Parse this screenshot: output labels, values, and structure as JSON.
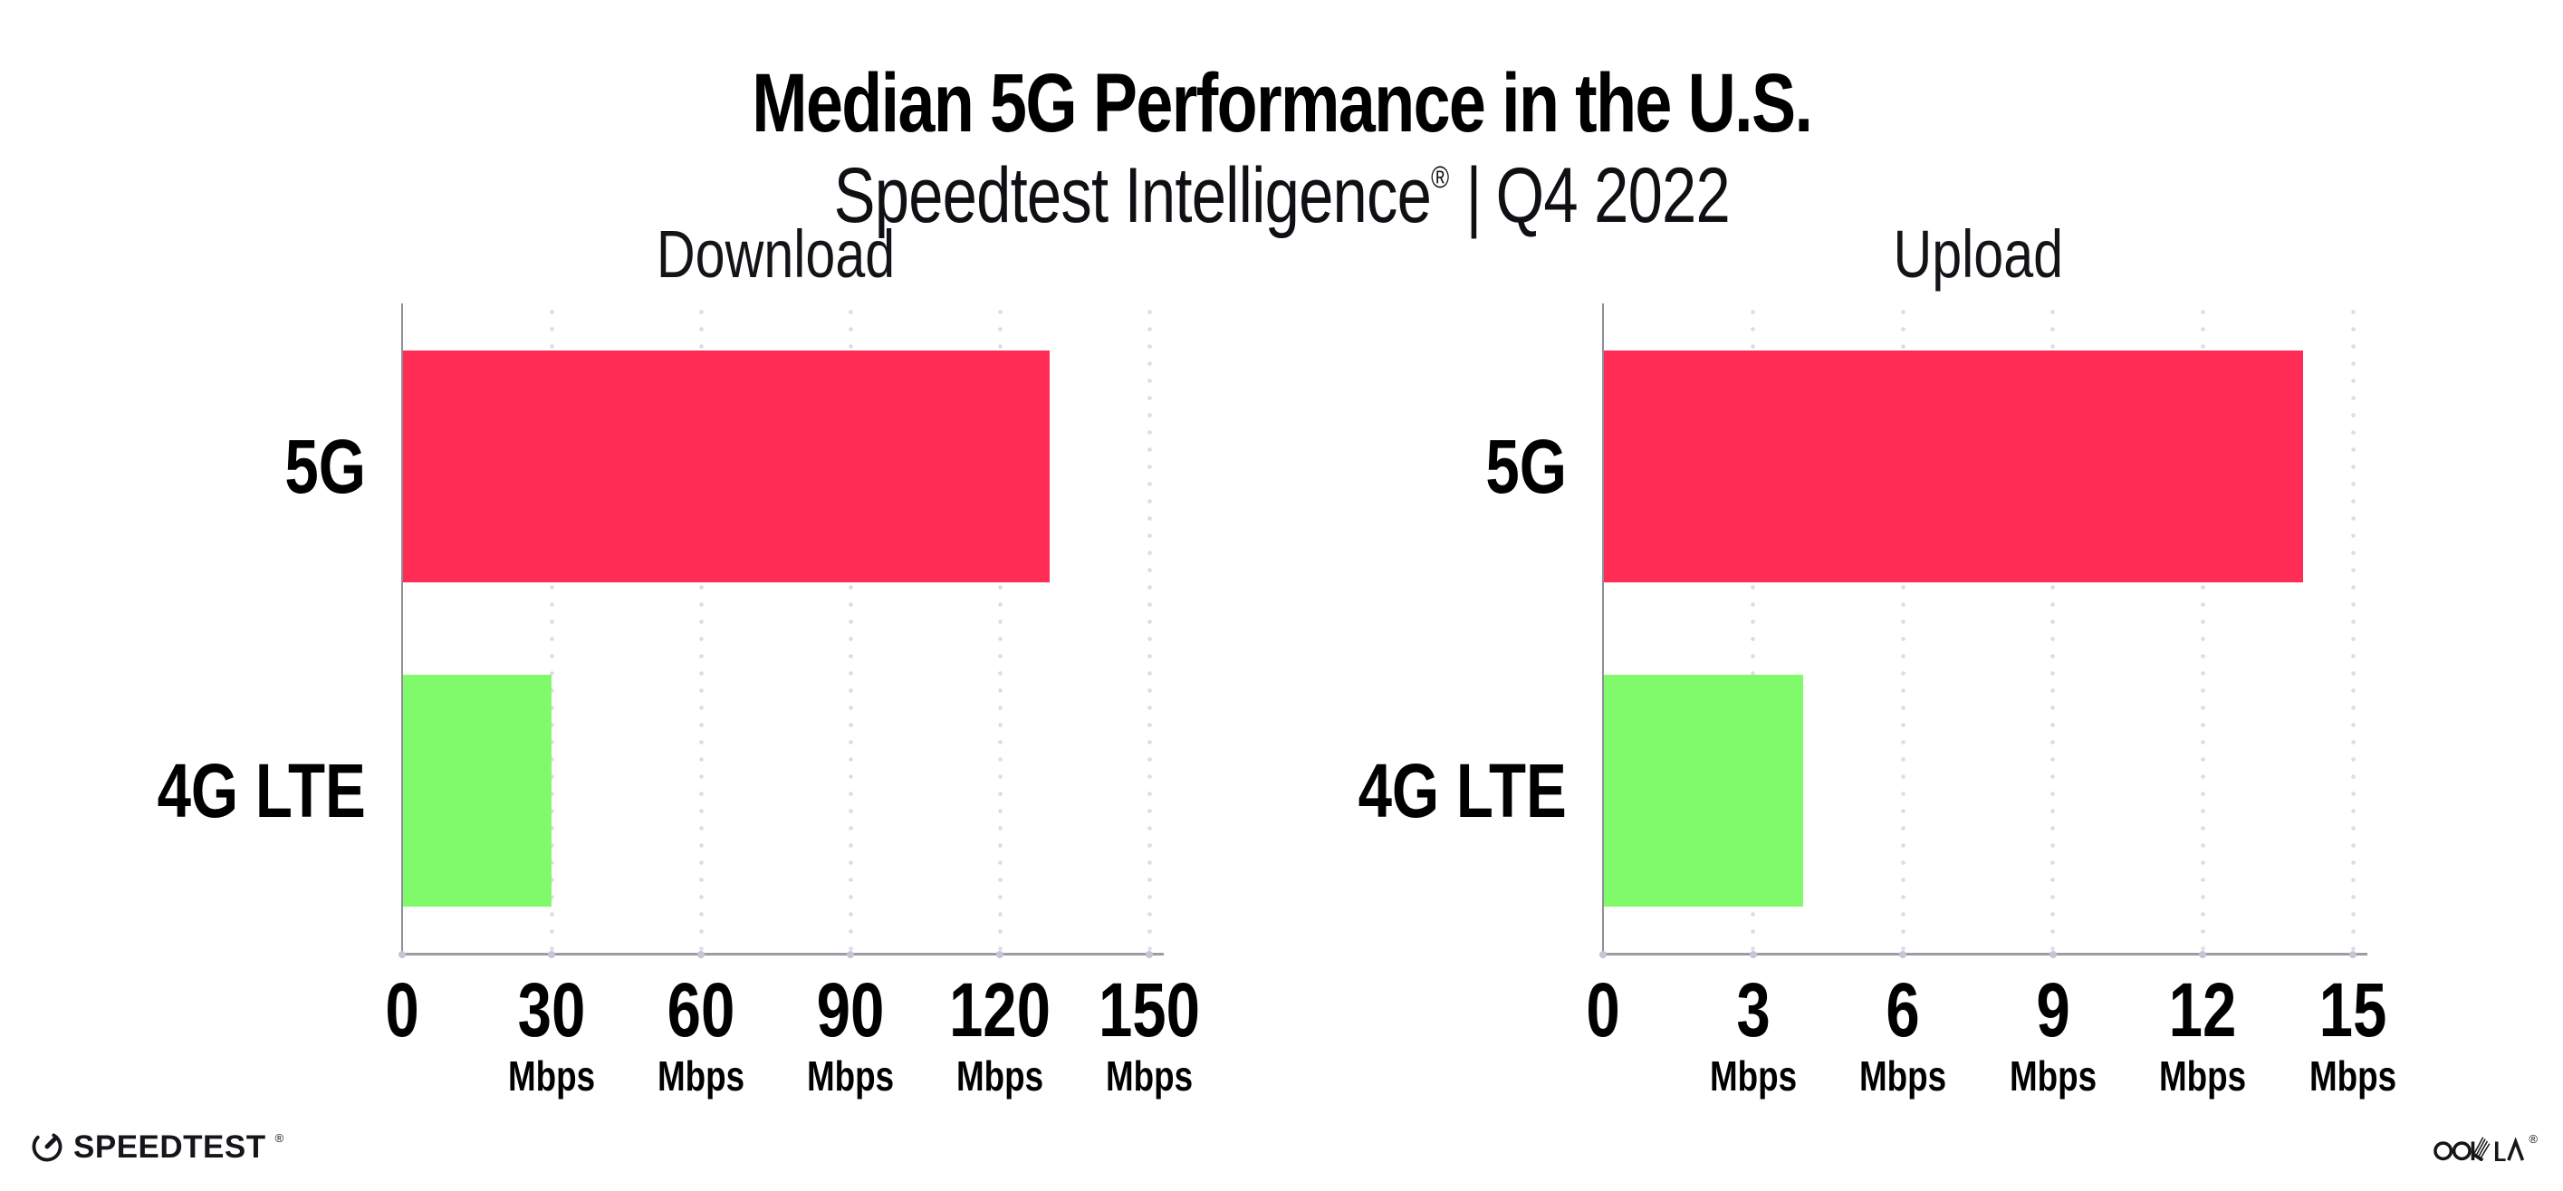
{
  "title": "Median 5G Performance in the U.S.",
  "subtitle": {
    "brand": "Speedtest Intelligence",
    "registered_mark": "®",
    "separator": "|",
    "period": "Q4 2022"
  },
  "colors": {
    "bar_5g": "#FF2D55",
    "bar_4g_lte": "#80FA6A",
    "bars": [
      "#FF2D55",
      "#80FA6A"
    ]
  },
  "chart_data": [
    {
      "type": "bar",
      "orientation": "horizontal",
      "title": "Download",
      "categories": [
        "5G",
        "4G LTE"
      ],
      "values": [
        130,
        30
      ],
      "unit": "Mbps",
      "xlim": [
        0,
        150
      ],
      "xticks": [
        0,
        30,
        60,
        90,
        120,
        150
      ],
      "grid": "vertical-dotted",
      "legend": "none",
      "note": "values estimated from gridlines; no data labels shown"
    },
    {
      "type": "bar",
      "orientation": "horizontal",
      "title": "Upload",
      "categories": [
        "5G",
        "4G LTE"
      ],
      "values": [
        14,
        4
      ],
      "unit": "Mbps",
      "xlim": [
        0,
        15
      ],
      "xticks": [
        0,
        3,
        6,
        9,
        12,
        15
      ],
      "grid": "vertical-dotted",
      "legend": "none",
      "note": "values estimated from gridlines; no data labels shown"
    }
  ],
  "footer": {
    "speedtest_label": "SPEEDTEST",
    "speedtest_mark": "®",
    "ookla_label": "OOKLA",
    "ookla_mark": "®"
  }
}
